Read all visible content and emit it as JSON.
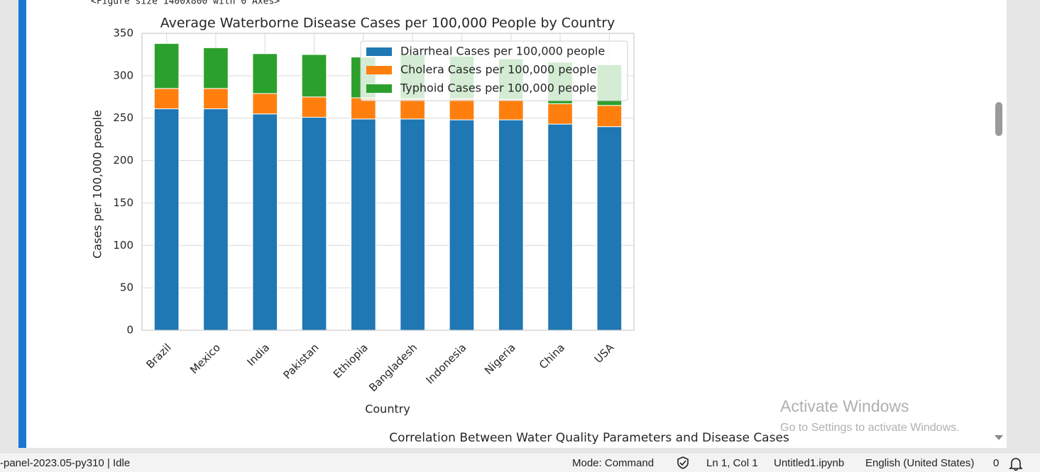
{
  "notebook": {
    "output_header": "<Figure size 1400x800 with 0 Axes>",
    "next_figure_title": "Correlation Between Water Quality Parameters and Disease Cases"
  },
  "watermark": {
    "title": "Activate Windows",
    "subtitle": "Go to Settings to activate Windows."
  },
  "status_bar": {
    "kernel": "-panel-2023.05-py310 | Idle",
    "mode": "Mode: Command",
    "cursor": "Ln 1, Col 1",
    "file": "Untitled1.ipynb",
    "language": "English (United States)",
    "notifications": "0"
  },
  "chart_data": {
    "type": "stacked_bar",
    "title": "Average Waterborne Disease Cases per 100,000 People by Country",
    "x_label": "Country",
    "y_label": "Cases per 100,000 people",
    "categories": [
      "Brazil",
      "Mexico",
      "India",
      "Pakistan",
      "Ethiopia",
      "Bangladesh",
      "Indonesia",
      "Nigeria",
      "China",
      "USA"
    ],
    "series": [
      {
        "name": "Diarrheal Cases per 100,000 people",
        "color": "#1f77b4",
        "values": [
          261,
          261,
          255,
          251,
          249,
          249,
          248,
          248,
          243,
          240
        ]
      },
      {
        "name": "Cholera Cases per 100,000 people",
        "color": "#ff7f0e",
        "values": [
          24,
          24,
          24,
          24,
          25,
          24,
          25,
          24,
          24,
          25
        ]
      },
      {
        "name": "Typhoid Cases per 100,000 people",
        "color": "#2ca02c",
        "values": [
          53,
          48,
          47,
          50,
          48,
          52,
          50,
          48,
          49,
          48
        ]
      }
    ],
    "ylim": [
      0,
      350
    ],
    "yticks": [
      0,
      50,
      100,
      150,
      200,
      250,
      300,
      350
    ],
    "grid": true,
    "legend": "upper right"
  }
}
